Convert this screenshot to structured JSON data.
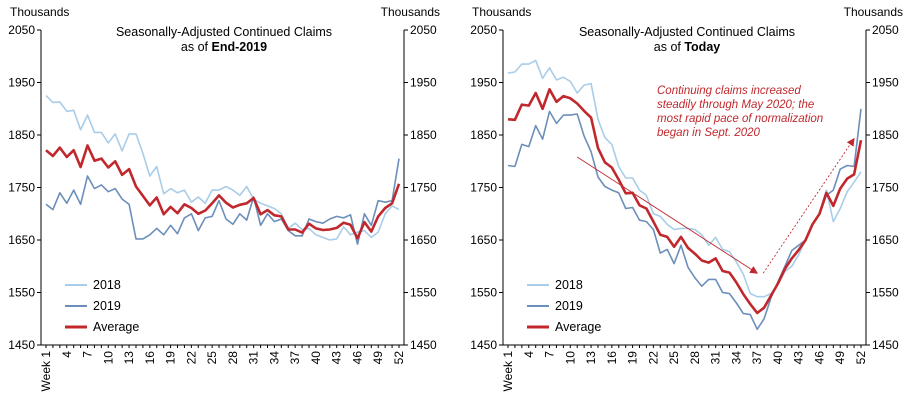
{
  "colors": {
    "s2018": "#a9cde8",
    "s2019": "#6b8fba",
    "average": "#c0282d",
    "annotation": "#c0282d",
    "axis": "#000000"
  },
  "chart_data": [
    {
      "type": "line",
      "title_line1": "Seasonally-Adjusted Continued Claims",
      "title_prefix": "as of ",
      "title_bold": "End-2019",
      "ylabel_left": "Thousands",
      "ylabel_right": "Thousands",
      "ylim": [
        1450,
        2050
      ],
      "yticks": [
        "1450",
        "1550",
        "1650",
        "1750",
        "1850",
        "1950",
        "2050"
      ],
      "xlim": [
        1,
        52
      ],
      "xticks": [
        "Week 1",
        "4",
        "7",
        "10",
        "13",
        "16",
        "19",
        "22",
        "25",
        "28",
        "31",
        "34",
        "37",
        "40",
        "43",
        "46",
        "49",
        "52"
      ],
      "legend": [
        "2018",
        "2019",
        "Average"
      ],
      "series": [
        {
          "name": "2018",
          "values": [
            1925,
            1912,
            1913,
            1895,
            1897,
            1860,
            1888,
            1855,
            1855,
            1835,
            1852,
            1820,
            1852,
            1852,
            1815,
            1772,
            1790,
            1738,
            1748,
            1740,
            1745,
            1722,
            1732,
            1720,
            1745,
            1745,
            1752,
            1745,
            1735,
            1752,
            1728,
            1720,
            1715,
            1710,
            1700,
            1672,
            1682,
            1670,
            1672,
            1660,
            1655,
            1650,
            1652,
            1675,
            1660,
            1665,
            1668,
            1655,
            1665,
            1700,
            1715,
            1708
          ]
        },
        {
          "name": "2019",
          "values": [
            1718,
            1708,
            1740,
            1720,
            1745,
            1718,
            1772,
            1748,
            1755,
            1742,
            1748,
            1728,
            1718,
            1652,
            1652,
            1660,
            1672,
            1660,
            1678,
            1662,
            1692,
            1700,
            1668,
            1692,
            1695,
            1725,
            1690,
            1680,
            1700,
            1688,
            1732,
            1678,
            1700,
            1685,
            1690,
            1668,
            1658,
            1658,
            1690,
            1685,
            1682,
            1690,
            1695,
            1692,
            1698,
            1642,
            1700,
            1678,
            1725,
            1722,
            1725,
            1805
          ]
        },
        {
          "name": "Average",
          "values": [
            1821,
            1810,
            1826,
            1808,
            1821,
            1789,
            1830,
            1801,
            1805,
            1788,
            1800,
            1774,
            1785,
            1752,
            1734,
            1716,
            1731,
            1699,
            1713,
            1701,
            1718,
            1711,
            1700,
            1706,
            1720,
            1735,
            1721,
            1712,
            1717,
            1720,
            1730,
            1699,
            1707,
            1697,
            1695,
            1670,
            1670,
            1664,
            1681,
            1672,
            1669,
            1670,
            1673,
            1683,
            1679,
            1653,
            1684,
            1666,
            1695,
            1711,
            1720,
            1757
          ]
        }
      ]
    },
    {
      "type": "line",
      "title_line1": "Seasonally-Adjusted Continued Claims",
      "title_prefix": "as of ",
      "title_bold": "Today",
      "ylabel_left": "Thousands",
      "ylabel_right": "Thousands",
      "ylim": [
        1450,
        2050
      ],
      "yticks": [
        "1450",
        "1550",
        "1650",
        "1750",
        "1850",
        "1950",
        "2050"
      ],
      "xlim": [
        1,
        52
      ],
      "xticks": [
        "Week 1",
        "4",
        "7",
        "10",
        "13",
        "16",
        "19",
        "22",
        "25",
        "28",
        "31",
        "34",
        "37",
        "40",
        "43",
        "46",
        "49",
        "52"
      ],
      "legend": [
        "2018",
        "2019",
        "Average"
      ],
      "annotation": [
        "Continuing claims increased",
        "steadily through May 2020; the",
        "most rapid pace of normalization",
        "began in Sept. 2020"
      ],
      "series": [
        {
          "name": "2018",
          "values": [
            1968,
            1970,
            1985,
            1985,
            1992,
            1958,
            1978,
            1955,
            1960,
            1952,
            1930,
            1945,
            1948,
            1880,
            1845,
            1832,
            1790,
            1768,
            1768,
            1745,
            1735,
            1700,
            1695,
            1680,
            1670,
            1672,
            1672,
            1670,
            1660,
            1640,
            1655,
            1632,
            1628,
            1608,
            1585,
            1548,
            1542,
            1542,
            1548,
            1565,
            1590,
            1600,
            1622,
            1650,
            1680,
            1700,
            1745,
            1685,
            1710,
            1742,
            1760,
            1780
          ]
        },
        {
          "name": "2019",
          "values": [
            1792,
            1790,
            1832,
            1828,
            1868,
            1842,
            1895,
            1872,
            1888,
            1888,
            1890,
            1848,
            1818,
            1770,
            1752,
            1745,
            1740,
            1710,
            1712,
            1688,
            1685,
            1670,
            1625,
            1632,
            1605,
            1640,
            1598,
            1578,
            1562,
            1575,
            1575,
            1550,
            1548,
            1530,
            1510,
            1508,
            1480,
            1500,
            1540,
            1570,
            1600,
            1630,
            1640,
            1650,
            1680,
            1700,
            1735,
            1745,
            1785,
            1792,
            1790,
            1900
          ]
        },
        {
          "name": "Average",
          "values": [
            1880,
            1879,
            1908,
            1906,
            1930,
            1900,
            1937,
            1913,
            1924,
            1920,
            1910,
            1896,
            1883,
            1825,
            1798,
            1788,
            1765,
            1739,
            1740,
            1716,
            1710,
            1685,
            1660,
            1656,
            1637,
            1656,
            1635,
            1624,
            1611,
            1607,
            1615,
            1591,
            1588,
            1569,
            1547,
            1528,
            1511,
            1521,
            1544,
            1567,
            1595,
            1615,
            1631,
            1650,
            1680,
            1700,
            1740,
            1715,
            1748,
            1767,
            1775,
            1840
          ]
        }
      ]
    }
  ]
}
